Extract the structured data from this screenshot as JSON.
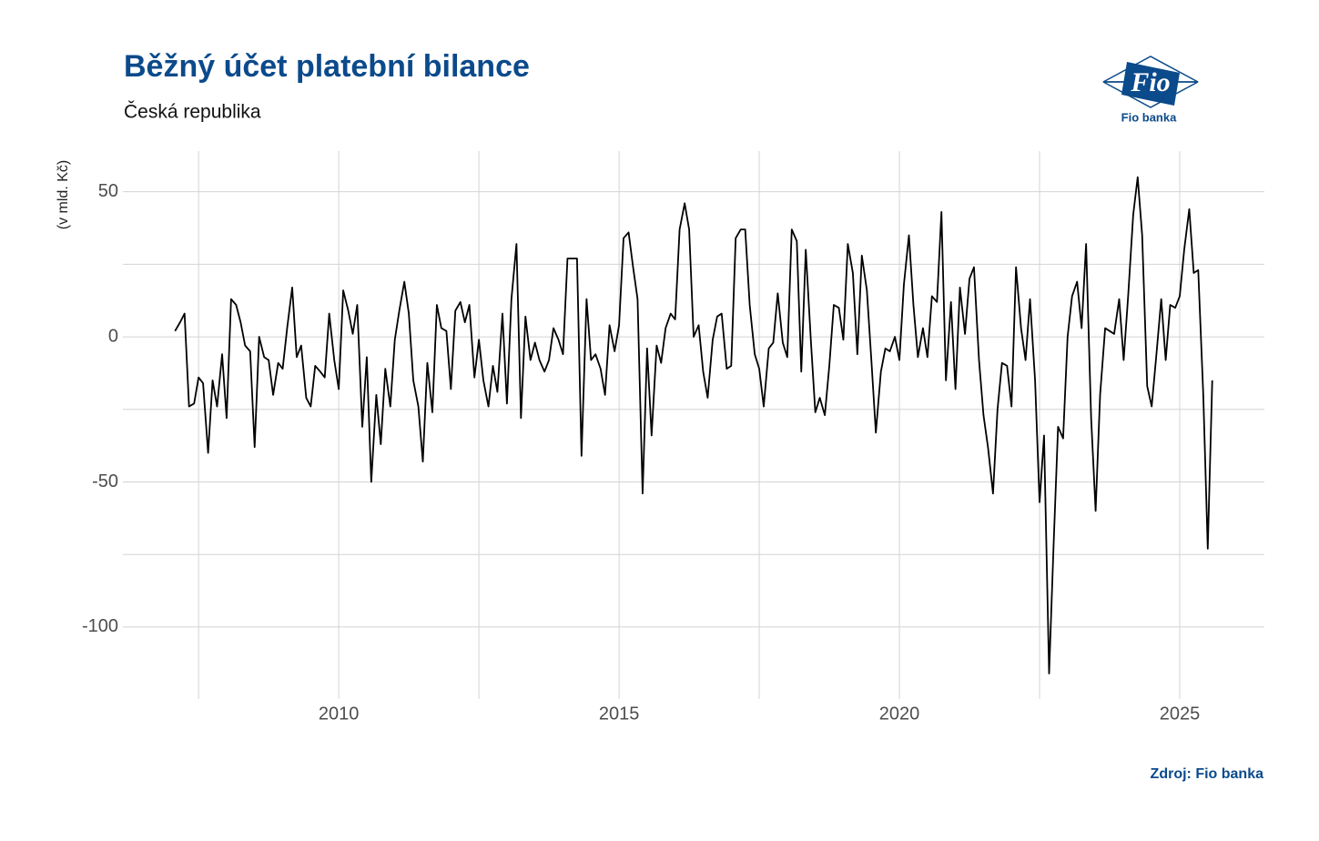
{
  "chart_data": {
    "type": "line",
    "title": "Běžný účet platební bilance",
    "subtitle": "Česká republika",
    "y_label": "(v mld. Kč)",
    "source": "Zdroj: Fio banka",
    "logo": {
      "mark": "Fio",
      "name": "Fio banka"
    },
    "color": "#000000",
    "grid": true,
    "xlim": [
      2006.15,
      2026.51
    ],
    "ylim": [
      -124.8,
      64
    ],
    "xticks": [
      2010,
      2015,
      2020,
      2025
    ],
    "yticks": [
      -100,
      -50,
      0,
      50
    ],
    "xticks_minor": [
      2007.5,
      2012.5,
      2017.5,
      2022.5
    ],
    "yticks_minor": [
      -75,
      -25,
      25
    ],
    "x": [
      2007.08,
      2007.17,
      2007.25,
      2007.33,
      2007.42,
      2007.5,
      2007.58,
      2007.67,
      2007.75,
      2007.83,
      2007.92,
      2008,
      2008.08,
      2008.17,
      2008.25,
      2008.33,
      2008.42,
      2008.5,
      2008.58,
      2008.67,
      2008.75,
      2008.83,
      2008.92,
      2009,
      2009.08,
      2009.17,
      2009.25,
      2009.33,
      2009.42,
      2009.5,
      2009.58,
      2009.67,
      2009.75,
      2009.83,
      2009.92,
      2010,
      2010.08,
      2010.17,
      2010.25,
      2010.33,
      2010.42,
      2010.5,
      2010.58,
      2010.67,
      2010.75,
      2010.83,
      2010.92,
      2011,
      2011.08,
      2011.17,
      2011.25,
      2011.33,
      2011.42,
      2011.5,
      2011.58,
      2011.67,
      2011.75,
      2011.83,
      2011.92,
      2012,
      2012.08,
      2012.17,
      2012.25,
      2012.33,
      2012.42,
      2012.5,
      2012.58,
      2012.67,
      2012.75,
      2012.83,
      2012.92,
      2013,
      2013.08,
      2013.17,
      2013.25,
      2013.33,
      2013.42,
      2013.5,
      2013.58,
      2013.67,
      2013.75,
      2013.83,
      2013.92,
      2014,
      2014.08,
      2014.17,
      2014.25,
      2014.33,
      2014.42,
      2014.5,
      2014.58,
      2014.67,
      2014.75,
      2014.83,
      2014.92,
      2015,
      2015.08,
      2015.17,
      2015.25,
      2015.33,
      2015.42,
      2015.5,
      2015.58,
      2015.67,
      2015.75,
      2015.83,
      2015.92,
      2016,
      2016.08,
      2016.17,
      2016.25,
      2016.33,
      2016.42,
      2016.5,
      2016.58,
      2016.67,
      2016.75,
      2016.83,
      2016.92,
      2017,
      2017.08,
      2017.17,
      2017.25,
      2017.33,
      2017.42,
      2017.5,
      2017.58,
      2017.67,
      2017.75,
      2017.83,
      2017.92,
      2018,
      2018.08,
      2018.17,
      2018.25,
      2018.33,
      2018.42,
      2018.5,
      2018.58,
      2018.67,
      2018.75,
      2018.83,
      2018.92,
      2019,
      2019.08,
      2019.17,
      2019.25,
      2019.33,
      2019.42,
      2019.5,
      2019.58,
      2019.67,
      2019.75,
      2019.83,
      2019.92,
      2020,
      2020.08,
      2020.17,
      2020.25,
      2020.33,
      2020.42,
      2020.5,
      2020.58,
      2020.67,
      2020.75,
      2020.83,
      2020.92,
      2021,
      2021.08,
      2021.17,
      2021.25,
      2021.33,
      2021.42,
      2021.5,
      2021.58,
      2021.67,
      2021.75,
      2021.83,
      2021.92,
      2022,
      2022.08,
      2022.17,
      2022.25,
      2022.33,
      2022.42,
      2022.5,
      2022.58,
      2022.67,
      2022.75,
      2022.83,
      2022.92,
      2023,
      2023.08,
      2023.17,
      2023.25,
      2023.33,
      2023.42,
      2023.5,
      2023.58,
      2023.67,
      2023.75,
      2023.83,
      2023.92,
      2024,
      2024.08,
      2024.17,
      2024.25,
      2024.33,
      2024.42,
      2024.5,
      2024.58,
      2024.67,
      2024.75,
      2024.83,
      2024.92,
      2025,
      2025.08,
      2025.17,
      2025.25,
      2025.33,
      2025.42,
      2025.5,
      2025.58
    ],
    "values": [
      2,
      5,
      8,
      -24,
      -23,
      -14,
      -16,
      -40,
      -15,
      -24,
      -6,
      -28,
      13,
      11,
      5,
      -3,
      -5,
      -38,
      0,
      -7,
      -8,
      -20,
      -9,
      -11,
      3,
      17,
      -7,
      -3,
      -21,
      -24,
      -10,
      -12,
      -14,
      8,
      -8,
      -18,
      16,
      9,
      1,
      11,
      -31,
      -7,
      -50,
      -20,
      -37,
      -11,
      -24,
      -1,
      9,
      19,
      8,
      -15,
      -24,
      -43,
      -9,
      -26,
      11,
      3,
      2,
      -18,
      9,
      12,
      5,
      11,
      -14,
      -1,
      -15,
      -24,
      -10,
      -19,
      8,
      -23,
      13,
      32,
      -28,
      7,
      -8,
      -2,
      -8,
      -12,
      -8,
      3,
      -1,
      -6,
      27,
      27,
      27,
      -41,
      13,
      -8,
      -6,
      -11,
      -20,
      4,
      -5,
      4,
      34,
      36,
      24,
      13,
      -54,
      -4,
      -34,
      -3,
      -9,
      3,
      8,
      6,
      37,
      46,
      37,
      0,
      4,
      -12,
      -21,
      -1,
      7,
      8,
      -11,
      -10,
      34,
      37,
      37,
      11,
      -6,
      -11,
      -24,
      -4,
      -2,
      15,
      -2,
      -7,
      37,
      33,
      -12,
      30,
      -1,
      -26,
      -21,
      -27,
      -10,
      11,
      10,
      -1,
      32,
      22,
      -6,
      28,
      16,
      -8,
      -33,
      -12,
      -4,
      -5,
      0,
      -8,
      18,
      35,
      11,
      -7,
      3,
      -7,
      14,
      12,
      43,
      -15,
      12,
      -18,
      17,
      1,
      20,
      24,
      -8,
      -27,
      -38,
      -54,
      -25,
      -9,
      -10,
      -24,
      24,
      3,
      -8,
      13,
      -15,
      -57,
      -34,
      -116,
      -72,
      -31,
      -35,
      0,
      14,
      19,
      3,
      32,
      -28,
      -60,
      -20,
      3,
      2,
      1,
      13,
      -8,
      14,
      42,
      55,
      35,
      -17,
      -24,
      -7,
      13,
      -8,
      11,
      10,
      14,
      30,
      44,
      22,
      23,
      -20,
      -73,
      -15
    ]
  }
}
